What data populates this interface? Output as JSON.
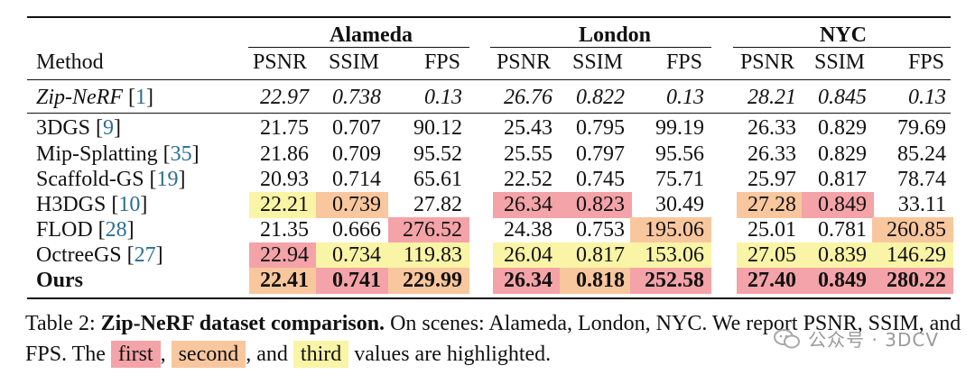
{
  "table": {
    "method_header": "Method",
    "groups": [
      "Alameda",
      "London",
      "NYC"
    ],
    "metric_headers": [
      "PSNR",
      "SSIM",
      "FPS"
    ],
    "rows": [
      {
        "name": "Zip-NeRF",
        "ref": "1",
        "style": "italic",
        "cells": [
          [
            "22.97",
            ""
          ],
          [
            "0.738",
            ""
          ],
          [
            "0.13",
            ""
          ],
          [
            "26.76",
            ""
          ],
          [
            "0.822",
            ""
          ],
          [
            "0.13",
            ""
          ],
          [
            "28.21",
            ""
          ],
          [
            "0.845",
            ""
          ],
          [
            "0.13",
            ""
          ]
        ]
      },
      {
        "name": "3DGS",
        "ref": "9",
        "style": "normal",
        "cells": [
          [
            "21.75",
            ""
          ],
          [
            "0.707",
            ""
          ],
          [
            "90.12",
            ""
          ],
          [
            "25.43",
            ""
          ],
          [
            "0.795",
            ""
          ],
          [
            "99.19",
            ""
          ],
          [
            "26.33",
            ""
          ],
          [
            "0.829",
            ""
          ],
          [
            "79.69",
            ""
          ]
        ]
      },
      {
        "name": "Mip-Splatting",
        "ref": "35",
        "style": "normal",
        "cells": [
          [
            "21.86",
            ""
          ],
          [
            "0.709",
            ""
          ],
          [
            "95.52",
            ""
          ],
          [
            "25.55",
            ""
          ],
          [
            "0.797",
            ""
          ],
          [
            "95.56",
            ""
          ],
          [
            "26.33",
            ""
          ],
          [
            "0.829",
            ""
          ],
          [
            "85.24",
            ""
          ]
        ]
      },
      {
        "name": "Scaffold-GS",
        "ref": "19",
        "style": "normal",
        "cells": [
          [
            "20.93",
            ""
          ],
          [
            "0.714",
            ""
          ],
          [
            "65.61",
            ""
          ],
          [
            "22.52",
            ""
          ],
          [
            "0.745",
            ""
          ],
          [
            "75.71",
            ""
          ],
          [
            "25.97",
            ""
          ],
          [
            "0.817",
            ""
          ],
          [
            "78.74",
            ""
          ]
        ]
      },
      {
        "name": "H3DGS",
        "ref": "10",
        "style": "normal",
        "cells": [
          [
            "22.21",
            "third"
          ],
          [
            "0.739",
            "second"
          ],
          [
            "27.82",
            ""
          ],
          [
            "26.34",
            "first"
          ],
          [
            "0.823",
            "first"
          ],
          [
            "30.49",
            ""
          ],
          [
            "27.28",
            "second"
          ],
          [
            "0.849",
            "first"
          ],
          [
            "33.11",
            ""
          ]
        ]
      },
      {
        "name": "FLOD",
        "ref": "28",
        "style": "normal",
        "cells": [
          [
            "21.35",
            ""
          ],
          [
            "0.666",
            ""
          ],
          [
            "276.52",
            "first"
          ],
          [
            "24.38",
            ""
          ],
          [
            "0.753",
            ""
          ],
          [
            "195.06",
            "second"
          ],
          [
            "25.01",
            ""
          ],
          [
            "0.781",
            ""
          ],
          [
            "260.85",
            "second"
          ]
        ]
      },
      {
        "name": "OctreeGS",
        "ref": "27",
        "style": "normal",
        "cells": [
          [
            "22.94",
            "first"
          ],
          [
            "0.734",
            "third"
          ],
          [
            "119.83",
            "third"
          ],
          [
            "26.04",
            "third"
          ],
          [
            "0.817",
            "third"
          ],
          [
            "153.06",
            "third"
          ],
          [
            "27.05",
            "third"
          ],
          [
            "0.839",
            "third"
          ],
          [
            "146.29",
            "third"
          ]
        ]
      },
      {
        "name": "Ours",
        "ref": "",
        "style": "bold",
        "cells": [
          [
            "22.41",
            "second"
          ],
          [
            "0.741",
            "first"
          ],
          [
            "229.99",
            "second"
          ],
          [
            "26.34",
            "first"
          ],
          [
            "0.818",
            "second"
          ],
          [
            "252.58",
            "first"
          ],
          [
            "27.40",
            "first"
          ],
          [
            "0.849",
            "first"
          ],
          [
            "280.22",
            "first"
          ]
        ]
      }
    ]
  },
  "highlight_colors": {
    "first": "#f4a3a8",
    "second": "#f9c79e",
    "third": "#faf4a6"
  },
  "caption": {
    "prefix": "Table 2: ",
    "title": "Zip-NeRF dataset comparison.",
    "text1": " On scenes: Alameda, London, NYC. We report PSNR, SSIM, and FPS. The ",
    "first": "first",
    "sep1": ", ",
    "second": "second",
    "sep2": ", and ",
    "third": "third",
    "text2": " values are highlighted."
  },
  "watermark": {
    "text": "公众号 · 3DCV"
  }
}
